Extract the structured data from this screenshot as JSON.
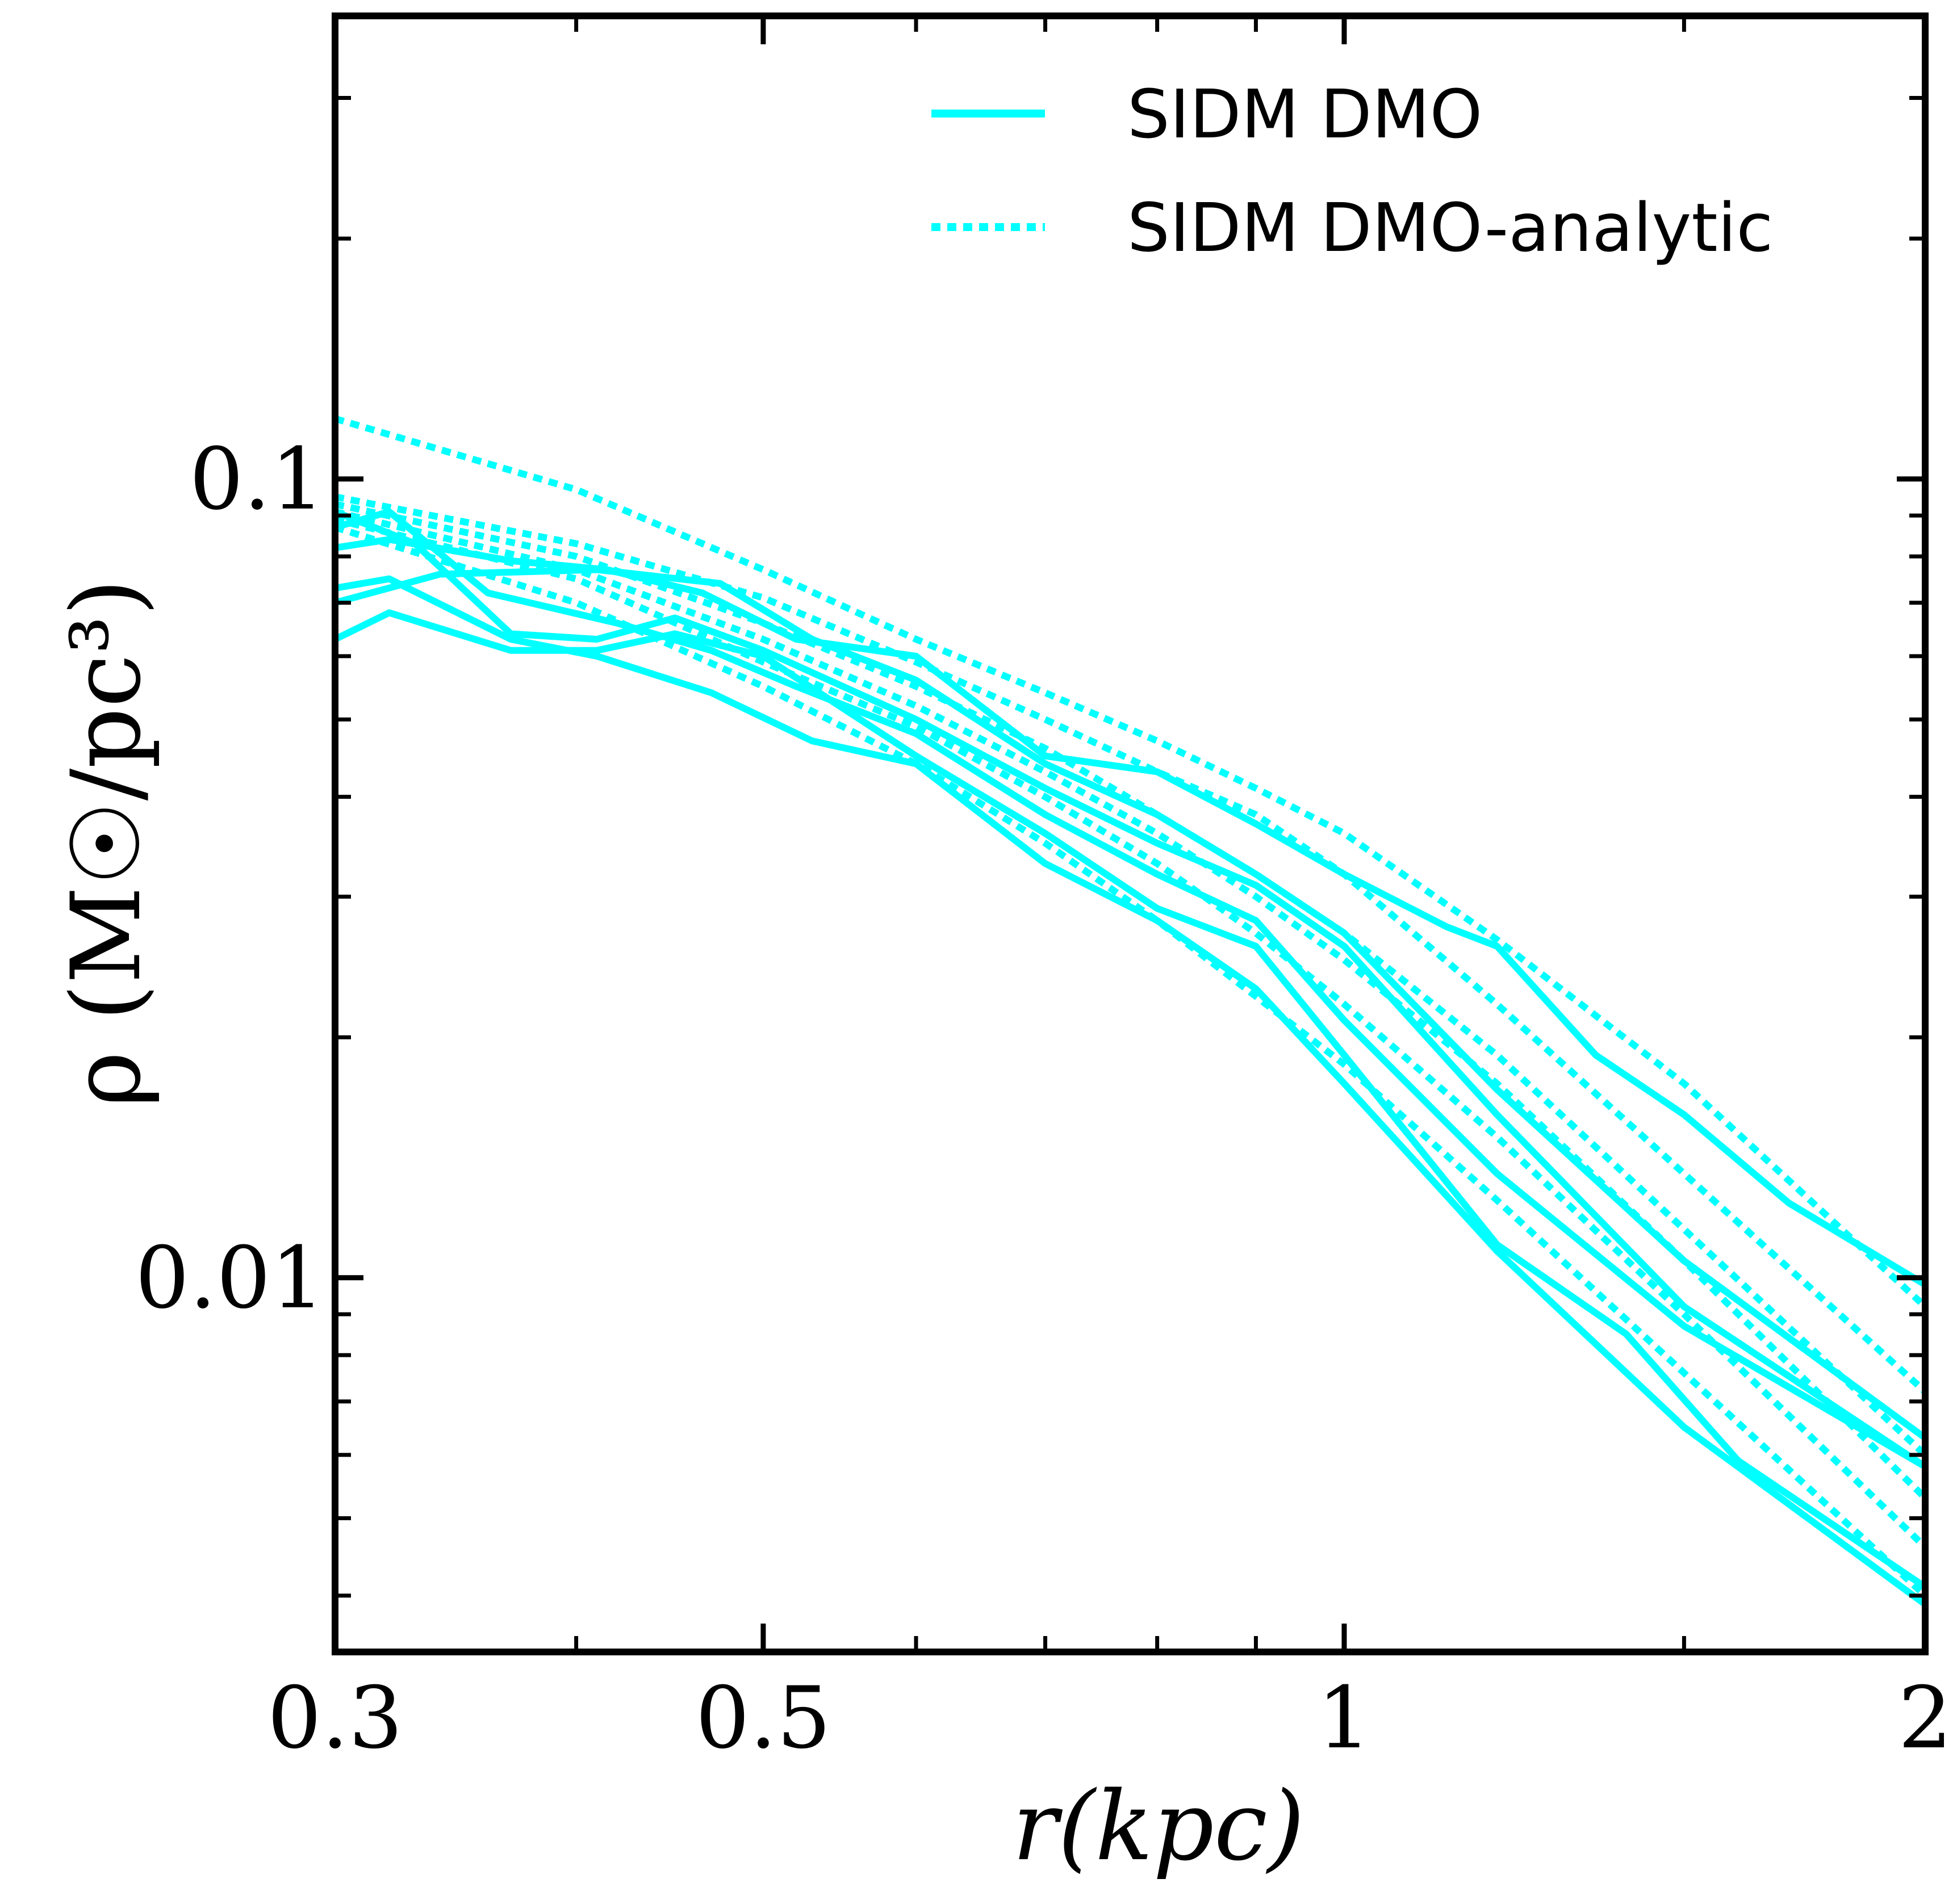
{
  "chart_data": {
    "type": "line",
    "title": "",
    "xlabel": "r(kpc)",
    "ylabel": "ρ (M☉/pc³)",
    "xscale": "log",
    "yscale": "log",
    "xlim": [
      0.3,
      2
    ],
    "ylim": [
      0.0034,
      0.38
    ],
    "xticks": [
      {
        "value": 0.3,
        "label": "0.3"
      },
      {
        "value": 0.5,
        "label": "0.5"
      },
      {
        "value": 1,
        "label": "1"
      },
      {
        "value": 2,
        "label": "2"
      }
    ],
    "yticks": [
      {
        "value": 0.01,
        "label": "0.01"
      },
      {
        "value": 0.1,
        "label": "0.1"
      }
    ],
    "grid": false,
    "legend_position": "top-right",
    "legend": [
      {
        "label": "SIDM DMO",
        "style": "solid"
      },
      {
        "label": "SIDM DMO-analytic",
        "style": "dotted"
      }
    ],
    "color": "#00ffff",
    "series": [
      {
        "name": "SIDM DMO",
        "style": "solid",
        "x": [
          0.3,
          0.32,
          0.37,
          0.415,
          0.465,
          0.52,
          0.6,
          0.7,
          0.8,
          0.9,
          1.0,
          1.13,
          1.2,
          1.35,
          1.5,
          1.7,
          2.0
        ],
        "y": [
          0.082,
          0.084,
          0.079,
          0.077,
          0.072,
          0.063,
          0.06,
          0.045,
          0.043,
          0.037,
          0.032,
          0.0275,
          0.026,
          0.019,
          0.016,
          0.0124,
          0.0098
        ]
      },
      {
        "name": "SIDM DMO",
        "style": "solid",
        "x": [
          0.3,
          0.34,
          0.41,
          0.475,
          0.53,
          0.6,
          0.7,
          0.8,
          0.9,
          1.0,
          1.2,
          1.5,
          2.0
        ],
        "y": [
          0.07,
          0.076,
          0.077,
          0.074,
          0.063,
          0.056,
          0.044,
          0.038,
          0.032,
          0.027,
          0.0172,
          0.0105,
          0.0063
        ]
      },
      {
        "name": "SIDM DMO",
        "style": "solid",
        "x": [
          0.3,
          0.33,
          0.37,
          0.41,
          0.45,
          0.5,
          0.6,
          0.7,
          0.8,
          0.9,
          1.0,
          1.2,
          1.5,
          2.0
        ],
        "y": [
          0.091,
          0.083,
          0.064,
          0.063,
          0.067,
          0.061,
          0.05,
          0.041,
          0.035,
          0.031,
          0.026,
          0.016,
          0.0092,
          0.0058
        ]
      },
      {
        "name": "SIDM DMO",
        "style": "solid",
        "x": [
          0.3,
          0.32,
          0.36,
          0.42,
          0.47,
          0.52,
          0.6,
          0.7,
          0.8,
          0.9,
          1.0,
          1.2,
          1.5,
          2.0
        ],
        "y": [
          0.087,
          0.091,
          0.072,
          0.066,
          0.061,
          0.055,
          0.048,
          0.038,
          0.032,
          0.028,
          0.021,
          0.0135,
          0.0087,
          0.0058
        ]
      },
      {
        "name": "SIDM DMO",
        "style": "solid",
        "x": [
          0.3,
          0.32,
          0.37,
          0.41,
          0.45,
          0.5,
          0.6,
          0.7,
          0.8,
          0.9,
          1.0,
          1.2,
          1.4,
          1.6,
          2.0
        ],
        "y": [
          0.063,
          0.068,
          0.061,
          0.061,
          0.064,
          0.06,
          0.045,
          0.036,
          0.029,
          0.026,
          0.019,
          0.011,
          0.0085,
          0.0059,
          0.0041
        ]
      },
      {
        "name": "SIDM DMO",
        "style": "solid",
        "x": [
          0.3,
          0.32,
          0.37,
          0.41,
          0.47,
          0.53,
          0.6,
          0.7,
          0.8,
          0.9,
          1.0,
          1.2,
          1.5,
          2.0
        ],
        "y": [
          0.073,
          0.075,
          0.063,
          0.06,
          0.054,
          0.047,
          0.044,
          0.033,
          0.028,
          0.023,
          0.0175,
          0.0108,
          0.0065,
          0.0039
        ]
      },
      {
        "name": "SIDM DMO-analytic",
        "style": "dotted",
        "x": [
          0.3,
          0.4,
          0.5,
          0.6,
          0.7,
          0.8,
          0.9,
          1.0,
          1.2,
          1.5,
          2.0
        ],
        "y": [
          0.119,
          0.097,
          0.077,
          0.063,
          0.054,
          0.047,
          0.041,
          0.036,
          0.0265,
          0.0175,
          0.0092
        ]
      },
      {
        "name": "SIDM DMO-analytic",
        "style": "dotted",
        "x": [
          0.3,
          0.4,
          0.5,
          0.6,
          0.7,
          0.8,
          0.9,
          1.0,
          1.2,
          1.5,
          2.0
        ],
        "y": [
          0.095,
          0.083,
          0.071,
          0.059,
          0.05,
          0.043,
          0.038,
          0.032,
          0.022,
          0.0135,
          0.0072
        ]
      },
      {
        "name": "SIDM DMO-analytic",
        "style": "dotted",
        "x": [
          0.3,
          0.4,
          0.5,
          0.6,
          0.7,
          0.8,
          0.9,
          1.0,
          1.2,
          1.5,
          2.0
        ],
        "y": [
          0.093,
          0.08,
          0.066,
          0.055,
          0.046,
          0.038,
          0.032,
          0.027,
          0.019,
          0.0115,
          0.006
        ]
      },
      {
        "name": "SIDM DMO-analytic",
        "style": "dotted",
        "x": [
          0.3,
          0.4,
          0.5,
          0.6,
          0.7,
          0.8,
          0.9,
          1.0,
          1.2,
          1.5,
          2.0
        ],
        "y": [
          0.091,
          0.077,
          0.063,
          0.052,
          0.043,
          0.036,
          0.03,
          0.025,
          0.0175,
          0.0105,
          0.0053
        ]
      },
      {
        "name": "SIDM DMO-analytic",
        "style": "dotted",
        "x": [
          0.3,
          0.4,
          0.5,
          0.6,
          0.7,
          0.8,
          0.9,
          1.0,
          1.2,
          1.5,
          2.0
        ],
        "y": [
          0.089,
          0.075,
          0.059,
          0.049,
          0.04,
          0.033,
          0.027,
          0.022,
          0.015,
          0.009,
          0.0046
        ]
      },
      {
        "name": "SIDM DMO-analytic",
        "style": "dotted",
        "x": [
          0.3,
          0.4,
          0.5,
          0.6,
          0.7,
          0.8,
          0.9,
          1.0,
          1.2,
          1.5,
          2.0
        ],
        "y": [
          0.087,
          0.07,
          0.055,
          0.044,
          0.035,
          0.028,
          0.0225,
          0.0185,
          0.0125,
          0.0076,
          0.004
        ]
      }
    ]
  }
}
